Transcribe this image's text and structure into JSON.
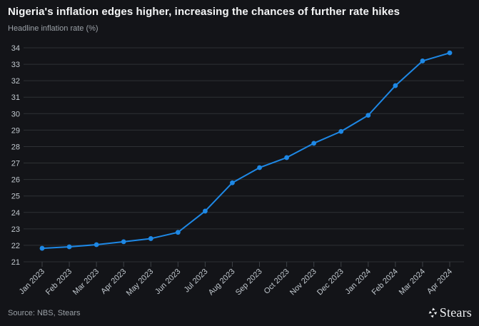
{
  "header": {
    "title": "Nigeria's inflation edges higher, increasing the chances of further rate hikes",
    "subtitle": "Headline inflation rate (%)"
  },
  "footer": {
    "source": "Source: NBS, Stears",
    "brand": "Stears"
  },
  "colors": {
    "background": "#131418",
    "line": "#1E88E5",
    "grid": "#2e3134",
    "tick": "#3c4045",
    "axis_label": "#c1c8ce",
    "title": "#f4f5f6",
    "muted_text": "#9ba1a7"
  },
  "chart_data": {
    "type": "line",
    "title": "Nigeria's inflation edges higher, increasing the chances of further rate hikes",
    "ylabel": "Headline inflation rate (%)",
    "xlabel": "",
    "x": [
      "Jan 2023",
      "Feb 2023",
      "Mar 2023",
      "Apr 2023",
      "May 2023",
      "Jun 2023",
      "Jul 2023",
      "Aug 2023",
      "Sep 2023",
      "Oct 2023",
      "Nov 2023",
      "Dec 2023",
      "Jan 2024",
      "Feb 2024",
      "Mar 2024",
      "Apr 2024"
    ],
    "series": [
      {
        "name": "Headline inflation rate (%)",
        "values": [
          21.82,
          21.91,
          22.04,
          22.22,
          22.41,
          22.79,
          24.08,
          25.8,
          26.72,
          27.33,
          28.2,
          28.92,
          29.9,
          31.7,
          33.2,
          33.69
        ]
      }
    ],
    "ylim": [
      21,
      34
    ],
    "ytick_step": 1,
    "grid": true,
    "legend": false,
    "marker": "circle",
    "x_label_rotation": -45
  }
}
